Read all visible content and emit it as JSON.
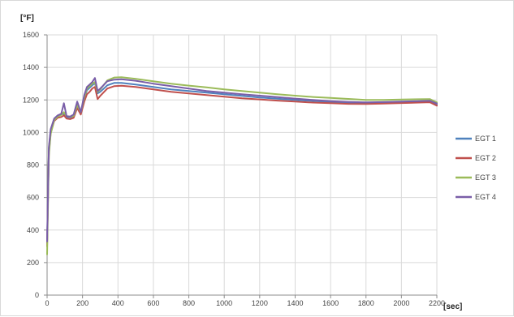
{
  "chart_data": {
    "type": "line",
    "ylabel": "[°F]",
    "xlabel": "[sec]",
    "xlim": [
      0,
      2200
    ],
    "ylim": [
      0,
      1600
    ],
    "x_ticks": [
      0,
      200,
      400,
      600,
      800,
      1000,
      1200,
      1400,
      1600,
      1800,
      2000,
      2200
    ],
    "y_ticks": [
      0,
      200,
      400,
      600,
      800,
      1000,
      1200,
      1400,
      1600
    ],
    "x_tick_labels": [
      "0",
      "200",
      "400",
      "600",
      "800",
      "1000",
      "1200",
      "1400",
      "1600",
      "1800",
      "2000",
      "2200"
    ],
    "y_tick_labels": [
      "0",
      "200",
      "400",
      "600",
      "800",
      "1000",
      "1200",
      "1400",
      "1600"
    ],
    "grid": true,
    "legend_position": "right",
    "series": [
      {
        "name": "EGT 1",
        "color": "#4f81bd",
        "x": [
          0,
          10,
          20,
          40,
          60,
          80,
          95,
          110,
          130,
          150,
          170,
          190,
          210,
          225,
          240,
          255,
          270,
          285,
          300,
          340,
          380,
          420,
          500,
          600,
          700,
          800,
          900,
          1000,
          1100,
          1200,
          1300,
          1400,
          1500,
          1600,
          1700,
          1800,
          1900,
          2000,
          2100,
          2160,
          2200
        ],
        "y": [
          320,
          900,
          1010,
          1080,
          1100,
          1110,
          1115,
          1095,
          1092,
          1100,
          1170,
          1120,
          1210,
          1260,
          1275,
          1290,
          1305,
          1240,
          1250,
          1290,
          1305,
          1305,
          1295,
          1280,
          1265,
          1255,
          1245,
          1235,
          1225,
          1215,
          1207,
          1200,
          1194,
          1188,
          1184,
          1182,
          1185,
          1188,
          1192,
          1194,
          1172
        ]
      },
      {
        "name": "EGT 2",
        "color": "#c0504d",
        "x": [
          0,
          10,
          20,
          40,
          60,
          80,
          95,
          110,
          130,
          150,
          170,
          190,
          210,
          225,
          240,
          255,
          270,
          285,
          300,
          340,
          380,
          420,
          500,
          600,
          700,
          800,
          900,
          1000,
          1100,
          1200,
          1300,
          1400,
          1500,
          1600,
          1700,
          1800,
          1900,
          2000,
          2100,
          2160,
          2200
        ],
        "y": [
          300,
          880,
          995,
          1070,
          1090,
          1095,
          1105,
          1085,
          1082,
          1090,
          1150,
          1110,
          1190,
          1235,
          1250,
          1270,
          1280,
          1205,
          1225,
          1270,
          1285,
          1287,
          1280,
          1265,
          1250,
          1240,
          1230,
          1220,
          1210,
          1203,
          1196,
          1190,
          1184,
          1180,
          1176,
          1175,
          1178,
          1181,
          1184,
          1186,
          1165
        ]
      },
      {
        "name": "EGT 3",
        "color": "#9bbb59",
        "x": [
          0,
          10,
          20,
          40,
          60,
          80,
          95,
          110,
          130,
          150,
          170,
          190,
          210,
          225,
          240,
          255,
          270,
          285,
          300,
          340,
          380,
          420,
          500,
          600,
          700,
          800,
          900,
          1000,
          1100,
          1200,
          1300,
          1400,
          1500,
          1600,
          1700,
          1800,
          1900,
          2000,
          2100,
          2160,
          2200
        ],
        "y": [
          250,
          860,
          990,
          1075,
          1098,
          1108,
          1125,
          1100,
          1096,
          1102,
          1168,
          1125,
          1215,
          1270,
          1285,
          1300,
          1310,
          1250,
          1265,
          1320,
          1338,
          1340,
          1330,
          1315,
          1300,
          1288,
          1277,
          1265,
          1255,
          1245,
          1235,
          1226,
          1218,
          1212,
          1206,
          1200,
          1200,
          1202,
          1204,
          1205,
          1185
        ]
      },
      {
        "name": "EGT 4",
        "color": "#7a5ea8",
        "x": [
          0,
          10,
          20,
          40,
          60,
          80,
          95,
          110,
          130,
          150,
          170,
          190,
          210,
          225,
          240,
          255,
          270,
          285,
          300,
          340,
          380,
          420,
          500,
          600,
          700,
          800,
          900,
          1000,
          1100,
          1200,
          1300,
          1400,
          1500,
          1600,
          1700,
          1800,
          1900,
          2000,
          2100,
          2160,
          2200
        ],
        "y": [
          330,
          910,
          1020,
          1085,
          1105,
          1115,
          1180,
          1100,
          1098,
          1110,
          1190,
          1125,
          1230,
          1280,
          1295,
          1310,
          1335,
          1255,
          1270,
          1315,
          1325,
          1327,
          1318,
          1300,
          1285,
          1270,
          1255,
          1245,
          1235,
          1226,
          1217,
          1208,
          1200,
          1193,
          1188,
          1185,
          1187,
          1190,
          1193,
          1195,
          1178
        ]
      }
    ]
  }
}
